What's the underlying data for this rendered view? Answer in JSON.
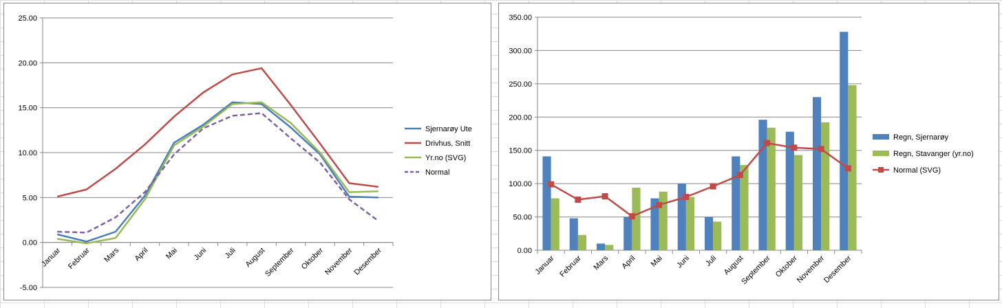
{
  "chart_data": [
    {
      "type": "line",
      "categories": [
        "Januar",
        "Februar",
        "Mars",
        "April",
        "Mai",
        "Juni",
        "Juli",
        "August",
        "September",
        "Oktober",
        "November",
        "Desember"
      ],
      "ylim": [
        -5,
        25
      ],
      "yticks": [
        "-5.00",
        "0.00",
        "5.00",
        "10.00",
        "15.00",
        "20.00",
        "25.00"
      ],
      "grid": true,
      "legend_position": "right",
      "series": [
        {
          "name": "Sjernarøy Ute",
          "color": "#4a7ebb",
          "dash": false,
          "values": [
            0.9,
            0.1,
            1.2,
            5.2,
            11.1,
            13.1,
            15.6,
            15.4,
            12.8,
            9.8,
            5.1,
            5.0
          ]
        },
        {
          "name": "Drivhus, Snitt",
          "color": "#be4b48",
          "dash": false,
          "values": [
            5.1,
            5.9,
            8.2,
            10.9,
            14.0,
            16.7,
            18.7,
            19.4,
            15.3,
            11.0,
            6.6,
            6.2
          ]
        },
        {
          "name": "Yr.no (SVG)",
          "color": "#98b954",
          "dash": false,
          "values": [
            0.4,
            -0.1,
            0.5,
            4.8,
            10.8,
            12.9,
            15.4,
            15.6,
            13.3,
            10.0,
            5.6,
            5.7
          ]
        },
        {
          "name": "Normal",
          "color": "#7d60a0",
          "dash": true,
          "values": [
            1.2,
            1.1,
            2.8,
            5.6,
            9.8,
            12.7,
            14.1,
            14.4,
            11.6,
            8.9,
            4.8,
            2.4
          ]
        }
      ]
    },
    {
      "type": "bar",
      "categories": [
        "Januar",
        "Februar",
        "Mars",
        "April",
        "Mai",
        "Juni",
        "Juli",
        "August",
        "September",
        "Oktober",
        "November",
        "Desember"
      ],
      "ylim": [
        0,
        350
      ],
      "yticks": [
        "0.00",
        "50.00",
        "100.00",
        "150.00",
        "200.00",
        "250.00",
        "300.00",
        "350.00"
      ],
      "grid": true,
      "legend_position": "right",
      "series": [
        {
          "name": "Regn, Sjernarøy",
          "type": "bar",
          "color": "#4f81bd",
          "values": [
            141,
            48,
            10,
            50,
            78,
            100,
            50,
            141,
            196,
            178,
            230,
            328
          ]
        },
        {
          "name": "Regn, Stavanger (yr.no)",
          "type": "bar",
          "color": "#9bbb59",
          "values": [
            78,
            23,
            8,
            94,
            88,
            80,
            43,
            128,
            184,
            143,
            192,
            248
          ]
        },
        {
          "name": "Normal (SVG)",
          "type": "line",
          "color": "#be4b48",
          "values": [
            99,
            76,
            81,
            51,
            68,
            80,
            96,
            113,
            161,
            154,
            152,
            123
          ]
        }
      ]
    }
  ]
}
